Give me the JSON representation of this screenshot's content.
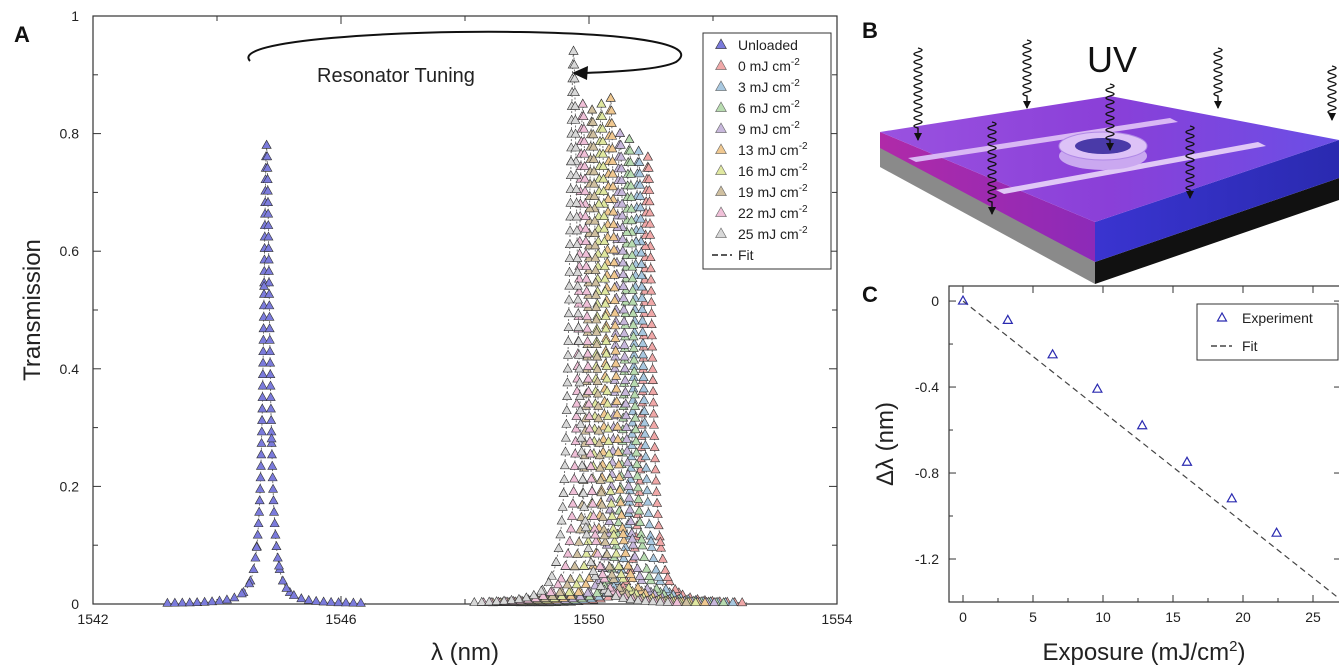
{
  "colors": {
    "unloaded": "#7b7bdc",
    "series": [
      "#f0a8a8",
      "#a8c8e0",
      "#b8dcb0",
      "#c8b8dc",
      "#f0c890",
      "#e0e8a0",
      "#d0c0a0",
      "#f0c0d8",
      "#d8d8d8"
    ],
    "experiment": "#2b2bb0",
    "fit_line": "#444444"
  },
  "panels": {
    "a": {
      "letter": "A",
      "annotation": "Resonator Tuning"
    },
    "b": {
      "letter": "B",
      "uv_label": "UV"
    },
    "c": {
      "letter": "C"
    }
  },
  "chart_data": [
    {
      "panel": "A",
      "type": "scatter",
      "xlabel": "λ (nm)",
      "ylabel": "Transmission",
      "xlim": [
        1542,
        1554
      ],
      "ylim": [
        0,
        1
      ],
      "xticks": [
        "1542",
        "1546",
        "1550",
        "1554"
      ],
      "yticks": [
        "0",
        "0.2",
        "0.4",
        "0.6",
        "0.8",
        "1"
      ],
      "legend_position": "top-right",
      "legend": [
        {
          "label": "Unloaded",
          "sup": ""
        },
        {
          "label": "0 mJ cm",
          "sup": "-2"
        },
        {
          "label": "3 mJ cm",
          "sup": "-2"
        },
        {
          "label": "6 mJ cm",
          "sup": "-2"
        },
        {
          "label": "9 mJ cm",
          "sup": "-2"
        },
        {
          "label": "13 mJ cm",
          "sup": "-2"
        },
        {
          "label": "16 mJ cm",
          "sup": "-2"
        },
        {
          "label": "19 mJ cm",
          "sup": "-2"
        },
        {
          "label": "22 mJ cm",
          "sup": "-2"
        },
        {
          "label": "25 mJ cm",
          "sup": "-2"
        },
        {
          "label": "Fit",
          "sup": ""
        }
      ],
      "series": [
        {
          "name": "Unloaded",
          "center": 1544.8,
          "peak": 0.78,
          "width": 0.06
        },
        {
          "name": "0 mJ cm-2",
          "center": 1550.95,
          "peak": 0.76,
          "width": 0.08
        },
        {
          "name": "3 mJ cm-2",
          "center": 1550.8,
          "peak": 0.77,
          "width": 0.08
        },
        {
          "name": "6 mJ cm-2",
          "center": 1550.65,
          "peak": 0.79,
          "width": 0.08
        },
        {
          "name": "9 mJ cm-2",
          "center": 1550.5,
          "peak": 0.8,
          "width": 0.08
        },
        {
          "name": "13 mJ cm-2",
          "center": 1550.35,
          "peak": 0.86,
          "width": 0.08
        },
        {
          "name": "16 mJ cm-2",
          "center": 1550.2,
          "peak": 0.85,
          "width": 0.08
        },
        {
          "name": "19 mJ cm-2",
          "center": 1550.05,
          "peak": 0.84,
          "width": 0.08
        },
        {
          "name": "22 mJ cm-2",
          "center": 1549.9,
          "peak": 0.85,
          "width": 0.08
        },
        {
          "name": "25 mJ cm-2",
          "center": 1549.75,
          "peak": 0.94,
          "width": 0.08
        }
      ]
    },
    {
      "panel": "C",
      "type": "scatter",
      "xlabel": "Exposure (mJ/cm",
      "xlabel_sup": "2",
      "xlabel_end": ")",
      "ylabel": "Δλ (nm)",
      "xlim": [
        -1,
        27
      ],
      "ylim": [
        -1.4,
        0.07
      ],
      "xticks": [
        0,
        5,
        10,
        15,
        20,
        25
      ],
      "xtick_labels": [
        "0",
        "5",
        "10",
        "15",
        "20",
        "25"
      ],
      "yticks": [
        0,
        -0.4,
        -0.8,
        -1.2
      ],
      "ytick_labels": [
        "0",
        "-0.4",
        "-0.8",
        "-1.2"
      ],
      "legend_position": "top-right",
      "legend": [
        "Experiment",
        "Fit"
      ],
      "x": [
        0,
        3.2,
        6.4,
        9.6,
        12.8,
        16,
        19.2,
        22.4
      ],
      "y": [
        0,
        -0.09,
        -0.25,
        -0.41,
        -0.58,
        -0.75,
        -0.92,
        -1.08
      ],
      "fit": {
        "slope": -0.0515,
        "intercept": 0
      }
    }
  ]
}
